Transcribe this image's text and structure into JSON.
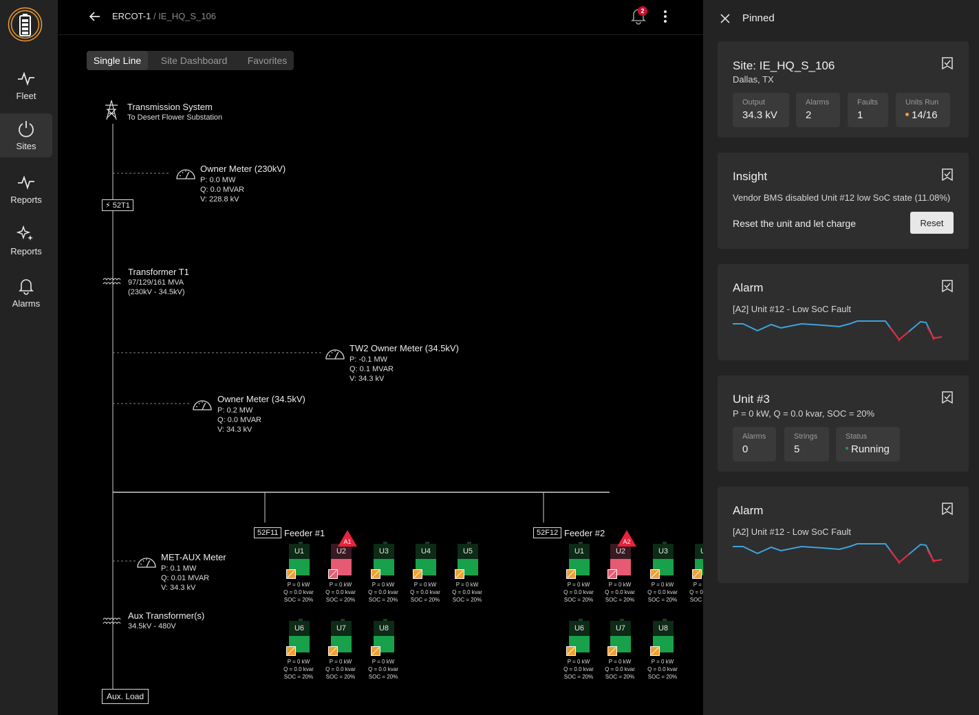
{
  "app": {
    "accent": "#f0a030",
    "alarm_color": "#e8233b",
    "ok_color": "#19a04a"
  },
  "nav": {
    "items": [
      {
        "label": "Fleet",
        "icon": "pulse-icon"
      },
      {
        "label": "Sites",
        "icon": "power-icon",
        "active": true
      },
      {
        "label": "Reports",
        "icon": "pulse-icon"
      },
      {
        "label": "Reports",
        "icon": "sparkle-icon"
      },
      {
        "label": "Alarms",
        "icon": "bell-icon"
      }
    ]
  },
  "header": {
    "breadcrumb_1": "ERCOT-1",
    "breadcrumb_sep": " / ",
    "breadcrumb_2": "IE_HQ_S_106",
    "notification_count": "2"
  },
  "tabs": [
    {
      "label": "Single Line",
      "active": true
    },
    {
      "label": "Site Dashboard"
    },
    {
      "label": "Favorites"
    }
  ],
  "sld": {
    "transmission": {
      "title": "Transmission System",
      "sub": "To Desert Flower Substation"
    },
    "owner_meter_230": {
      "title": "Owner Meter (230kV)",
      "p": "P: 0.0 MW",
      "q": "Q: 0.0 MVAR",
      "v": "V: 228.8 kV"
    },
    "breaker_main": "52T1",
    "transformer": {
      "title": "Transformer T1",
      "rating": "97/129/161 MVA",
      "ratio": "(230kV - 34.5kV)"
    },
    "tw2_meter": {
      "title": "TW2 Owner Meter (34.5kV)",
      "p": "P: -0.1 MW",
      "q": "Q: 0.1 MVAR",
      "v": "V: 34.3 kV"
    },
    "owner_meter_345": {
      "title": "Owner Meter (34.5kV)",
      "p": "P: 0.2 MW",
      "q": "Q: 0.0 MVAR",
      "v": "V: 34.3 kV"
    },
    "met_aux": {
      "title": "MET-AUX Meter",
      "p": "P: 0.1 MW",
      "q": "Q: 0.01 MVAR",
      "v": "V: 34.3 kV"
    },
    "aux_transformer": {
      "title": "Aux Transformer(s)",
      "ratio": "34.5kV - 480V"
    },
    "aux_load": "Aux. Load",
    "feeders": [
      {
        "breaker": "52F11",
        "name": "Feeder #1",
        "alarm": "A1"
      },
      {
        "breaker": "52F12",
        "name": "Feeder #2",
        "alarm": "A2"
      }
    ],
    "unit_stats": {
      "p": "P = 0 kW",
      "q": "Q = 0.0 kvar",
      "soc": "SOC = 20%"
    },
    "units": [
      "U1",
      "U2",
      "U3",
      "U4",
      "U5",
      "U6",
      "U7",
      "U8"
    ]
  },
  "panel": {
    "title": "Pinned",
    "site_card": {
      "title": "Site: IE_HQ_S_106",
      "location": "Dallas, TX",
      "stats": [
        {
          "label": "Output",
          "value": "34.3 kV"
        },
        {
          "label": "Alarms",
          "value": "2"
        },
        {
          "label": "Faults",
          "value": "1"
        },
        {
          "label": "Units Run",
          "value": "14/16"
        }
      ]
    },
    "insight_card": {
      "title": "Insight",
      "text": "Vendor BMS disabled Unit #12 low SoC state (11.08%)",
      "action_text": "Reset the unit and let charge",
      "button": "Reset"
    },
    "alarm_card_1": {
      "title": "Alarm",
      "text": "[A2] Unit #12 - Low SoC Fault"
    },
    "unit_card": {
      "title": "Unit #3",
      "text": "P = 0 kW, Q = 0.0 kvar, SOC = 20%",
      "stats": [
        {
          "label": "Alarms",
          "value": "0"
        },
        {
          "label": "Strings",
          "value": "5"
        },
        {
          "label": "Status",
          "value": "Running"
        }
      ]
    },
    "alarm_card_2": {
      "title": "Alarm",
      "text": "[A2] Unit #12 - Low SoC Fault"
    }
  }
}
